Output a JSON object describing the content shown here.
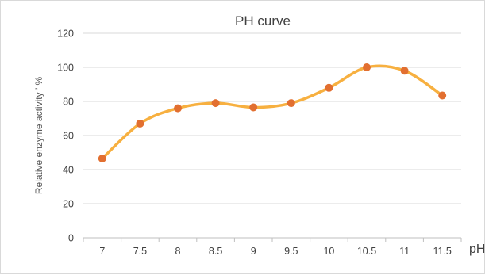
{
  "chart_data": {
    "type": "line",
    "title": "PH curve",
    "xlabel": "pH",
    "ylabel": "Relative enzyme activity ’ %",
    "categories": [
      "7",
      "7.5",
      "8",
      "8.5",
      "9",
      "9.5",
      "10",
      "10.5",
      "11",
      "11.5"
    ],
    "series": [
      {
        "x": [
          7,
          7.5,
          8,
          8.5,
          9,
          9.5,
          10,
          10.5,
          11,
          11.5
        ],
        "values": [
          46.5,
          67,
          76,
          79,
          76.5,
          79,
          88,
          100,
          98,
          83.5
        ],
        "line_color": "#F7B040",
        "marker_color": "#E26F30",
        "smooth": true
      }
    ],
    "ylim": [
      0,
      120
    ],
    "yticks": [
      0,
      20,
      40,
      60,
      80,
      100,
      120
    ],
    "grid": true,
    "legend": "none"
  }
}
